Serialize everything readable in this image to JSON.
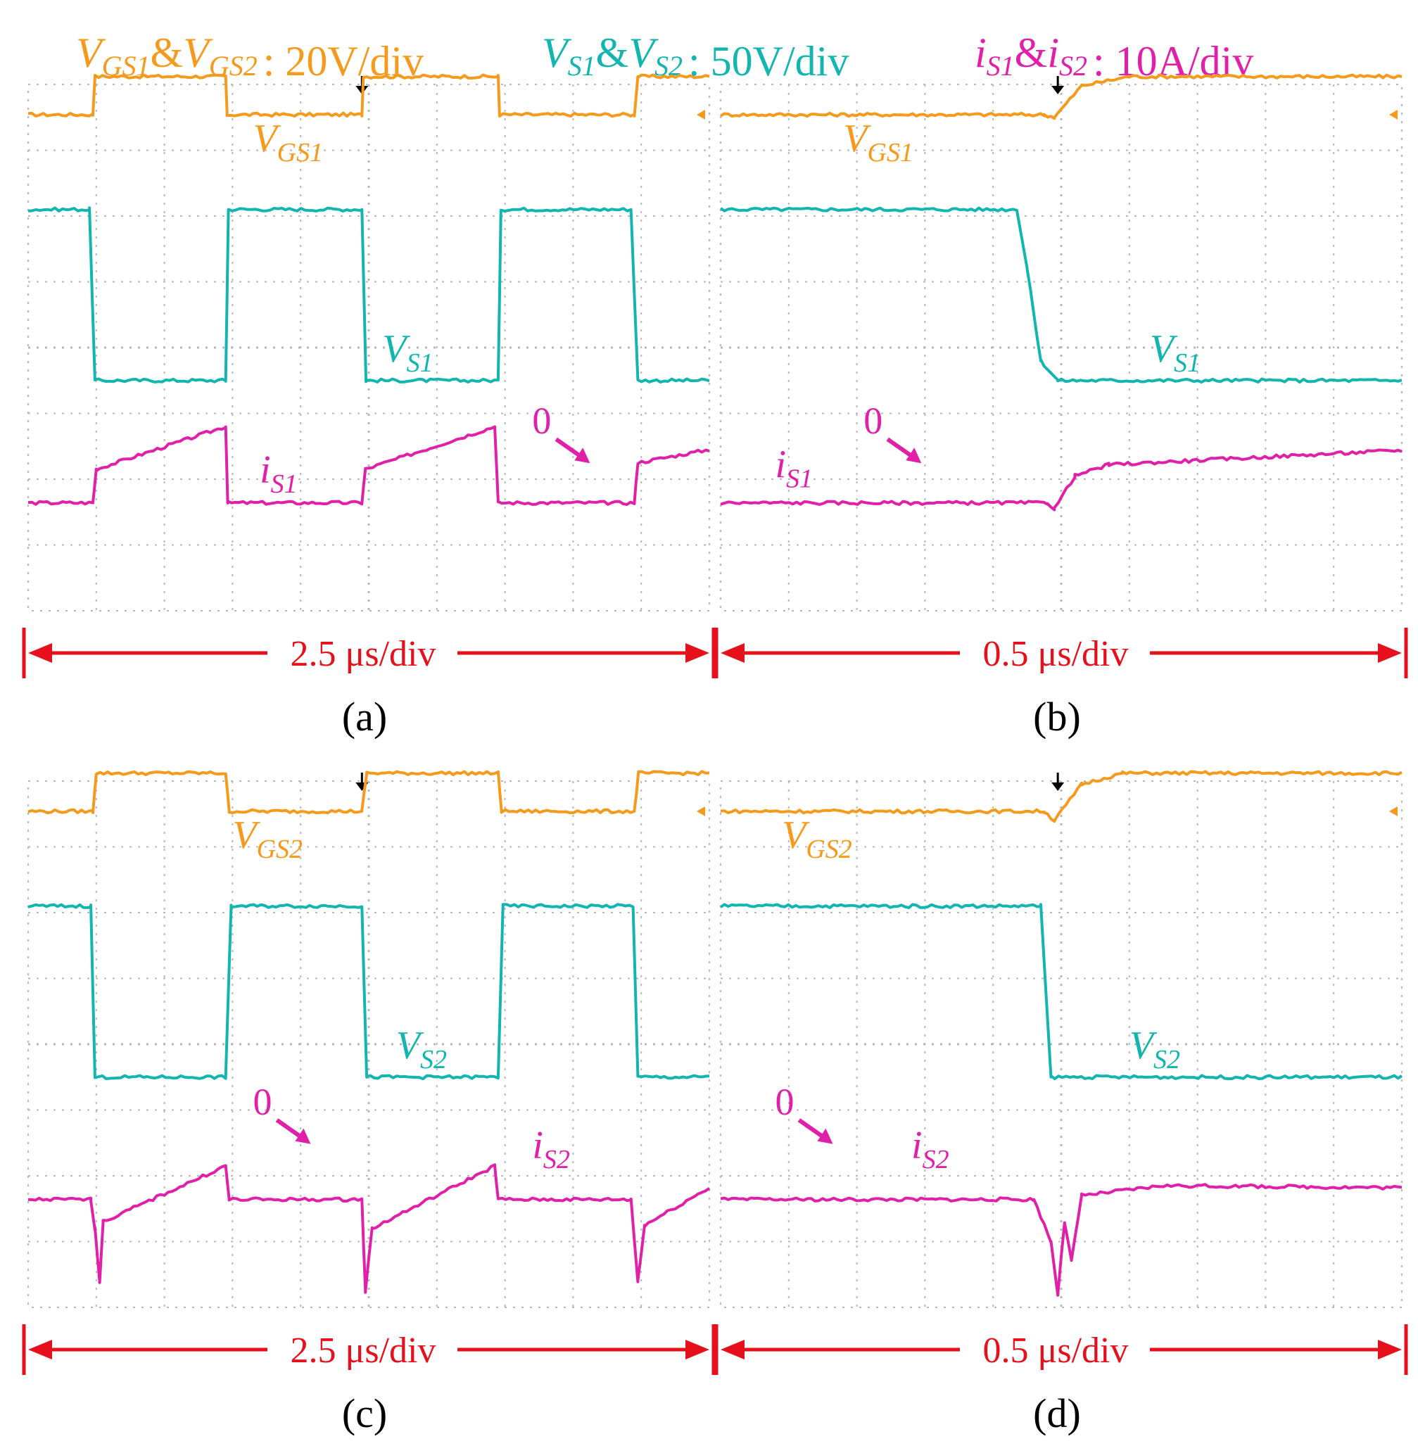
{
  "figure": {
    "legend": [
      {
        "key": "vgs",
        "text": "V_GS1&V_GS2",
        "scale": ": 20V/div",
        "color": "#f59a1c"
      },
      {
        "key": "vs",
        "text": "V_S1&V_S2",
        "scale": ": 50V/div",
        "color": "#12b5b0"
      },
      {
        "key": "is",
        "text": "i_S1&i_S2",
        "scale": ": 10A/div",
        "color": "#e020a8"
      }
    ],
    "colors": {
      "vgs": "#f59a1c",
      "vs": "#12b5b0",
      "is": "#e020a8",
      "scale_arrow": "#e5101b",
      "grid": "#b8b8b8",
      "trigger": "#000000"
    },
    "zero_label": "0"
  },
  "chart_data": [
    {
      "type": "line",
      "panel": "a",
      "caption": "(a)",
      "time_scale": "2.5 μs/div",
      "x_divisions": 10,
      "y_divisions": 8,
      "labels": {
        "vgs": [
          "V",
          "GS1"
        ],
        "vs": [
          "V",
          "S1"
        ],
        "is": [
          "i",
          "S1"
        ]
      },
      "series": [
        {
          "name": "V_GS1",
          "unit": "div",
          "edges_div": [
            [
              0,
              5.94
            ],
            [
              0.95,
              5.94
            ],
            [
              0.98,
              6.52
            ],
            [
              2.9,
              6.52
            ],
            [
              2.92,
              5.94
            ],
            [
              4.9,
              5.94
            ],
            [
              4.92,
              6.52
            ],
            [
              6.9,
              6.52
            ],
            [
              6.92,
              5.94
            ],
            [
              8.9,
              5.94
            ],
            [
              8.95,
              6.52
            ],
            [
              10,
              6.52
            ]
          ]
        },
        {
          "name": "V_S1",
          "unit": "div",
          "edges_div": [
            [
              0,
              4.5
            ],
            [
              0.9,
              4.5
            ],
            [
              0.98,
              1.9
            ],
            [
              2.9,
              1.9
            ],
            [
              2.94,
              4.5
            ],
            [
              4.9,
              4.5
            ],
            [
              4.96,
              1.9
            ],
            [
              6.9,
              1.9
            ],
            [
              6.94,
              4.5
            ],
            [
              8.85,
              4.5
            ],
            [
              8.95,
              1.9
            ],
            [
              10,
              1.9
            ]
          ]
        },
        {
          "name": "i_S1",
          "unit": "div",
          "edges_div": [
            [
              0,
              0.04
            ],
            [
              0.95,
              0.04
            ],
            [
              1.0,
              0.55
            ],
            [
              2.9,
              1.2
            ],
            [
              2.93,
              0.04
            ],
            [
              4.9,
              0.04
            ],
            [
              4.95,
              0.55
            ],
            [
              6.85,
              1.2
            ],
            [
              6.9,
              0.04
            ],
            [
              8.9,
              0.04
            ],
            [
              8.95,
              0.65
            ],
            [
              10,
              0.85
            ]
          ]
        }
      ]
    },
    {
      "type": "line",
      "panel": "b",
      "caption": "(b)",
      "time_scale": "0.5 μs/div",
      "x_divisions": 10,
      "y_divisions": 8,
      "labels": {
        "vgs": [
          "V",
          "GS1"
        ],
        "vs": [
          "V",
          "S1"
        ],
        "is": [
          "i",
          "S1"
        ]
      },
      "series": [
        {
          "name": "V_GS1",
          "unit": "div",
          "edges_div": [
            [
              0,
              5.94
            ],
            [
              4.75,
              5.94
            ],
            [
              4.9,
              5.9
            ],
            [
              5.3,
              6.38
            ],
            [
              6.0,
              6.52
            ],
            [
              10,
              6.52
            ]
          ]
        },
        {
          "name": "V_S1",
          "unit": "div",
          "edges_div": [
            [
              0,
              4.5
            ],
            [
              4.35,
              4.5
            ],
            [
              4.5,
              3.6
            ],
            [
              4.7,
              2.2
            ],
            [
              4.95,
              1.9
            ],
            [
              10,
              1.9
            ]
          ]
        },
        {
          "name": "i_S1",
          "unit": "div",
          "edges_div": [
            [
              0,
              0.04
            ],
            [
              4.8,
              0.04
            ],
            [
              4.9,
              -0.05
            ],
            [
              5.2,
              0.45
            ],
            [
              5.7,
              0.62
            ],
            [
              10,
              0.84
            ]
          ]
        }
      ]
    },
    {
      "type": "line",
      "panel": "c",
      "caption": "(c)",
      "time_scale": "2.5 μs/div",
      "x_divisions": 10,
      "y_divisions": 8,
      "labels": {
        "vgs": [
          "V",
          "GS2"
        ],
        "vs": [
          "V",
          "S2"
        ],
        "is": [
          "i",
          "S2"
        ]
      },
      "series": [
        {
          "name": "V_GS2",
          "unit": "div",
          "edges_div": [
            [
              0,
              5.94
            ],
            [
              0.95,
              5.94
            ],
            [
              1.0,
              6.52
            ],
            [
              2.9,
              6.52
            ],
            [
              2.95,
              5.94
            ],
            [
              4.9,
              5.94
            ],
            [
              4.97,
              6.52
            ],
            [
              6.9,
              6.52
            ],
            [
              6.95,
              5.94
            ],
            [
              8.9,
              5.94
            ],
            [
              8.96,
              6.52
            ],
            [
              10,
              6.52
            ]
          ]
        },
        {
          "name": "V_S2",
          "unit": "div",
          "edges_div": [
            [
              0,
              4.5
            ],
            [
              0.92,
              4.5
            ],
            [
              0.98,
              1.9
            ],
            [
              2.9,
              1.9
            ],
            [
              2.98,
              4.5
            ],
            [
              4.9,
              4.5
            ],
            [
              4.97,
              1.9
            ],
            [
              6.9,
              1.9
            ],
            [
              6.97,
              4.5
            ],
            [
              8.88,
              4.5
            ],
            [
              8.95,
              1.9
            ],
            [
              10,
              1.9
            ]
          ]
        },
        {
          "name": "i_S2",
          "unit": "div",
          "edges_div": [
            [
              0,
              0.04
            ],
            [
              0.92,
              0.04
            ],
            [
              0.98,
              -0.4
            ],
            [
              1.05,
              -1.2
            ],
            [
              1.1,
              -0.3
            ],
            [
              2.9,
              0.55
            ],
            [
              2.95,
              0.04
            ],
            [
              4.9,
              0.04
            ],
            [
              4.95,
              -1.35
            ],
            [
              5.05,
              -0.4
            ],
            [
              6.85,
              0.55
            ],
            [
              6.9,
              0.04
            ],
            [
              8.85,
              0.04
            ],
            [
              8.95,
              -1.2
            ],
            [
              9.05,
              -0.35
            ],
            [
              10,
              0.22
            ]
          ]
        }
      ]
    },
    {
      "type": "line",
      "panel": "d",
      "caption": "(d)",
      "time_scale": "0.5 μs/div",
      "x_divisions": 10,
      "y_divisions": 8,
      "labels": {
        "vgs": [
          "V",
          "GS2"
        ],
        "vs": [
          "V",
          "S2"
        ],
        "is": [
          "i",
          "S2"
        ]
      },
      "series": [
        {
          "name": "V_GS2",
          "unit": "div",
          "edges_div": [
            [
              0,
              5.94
            ],
            [
              4.75,
              5.94
            ],
            [
              4.9,
              5.8
            ],
            [
              5.3,
              6.35
            ],
            [
              5.9,
              6.52
            ],
            [
              10,
              6.52
            ]
          ]
        },
        {
          "name": "V_S2",
          "unit": "div",
          "edges_div": [
            [
              0,
              4.5
            ],
            [
              4.7,
              4.5
            ],
            [
              4.85,
              1.9
            ],
            [
              10,
              1.9
            ]
          ]
        },
        {
          "name": "i_S2",
          "unit": "div",
          "edges_div": [
            [
              0,
              0.04
            ],
            [
              4.6,
              0.04
            ],
            [
              4.85,
              -0.6
            ],
            [
              4.95,
              -1.4
            ],
            [
              5.05,
              -0.3
            ],
            [
              5.15,
              -0.9
            ],
            [
              5.3,
              0.1
            ],
            [
              6.5,
              0.25
            ],
            [
              10,
              0.22
            ]
          ]
        }
      ]
    }
  ]
}
